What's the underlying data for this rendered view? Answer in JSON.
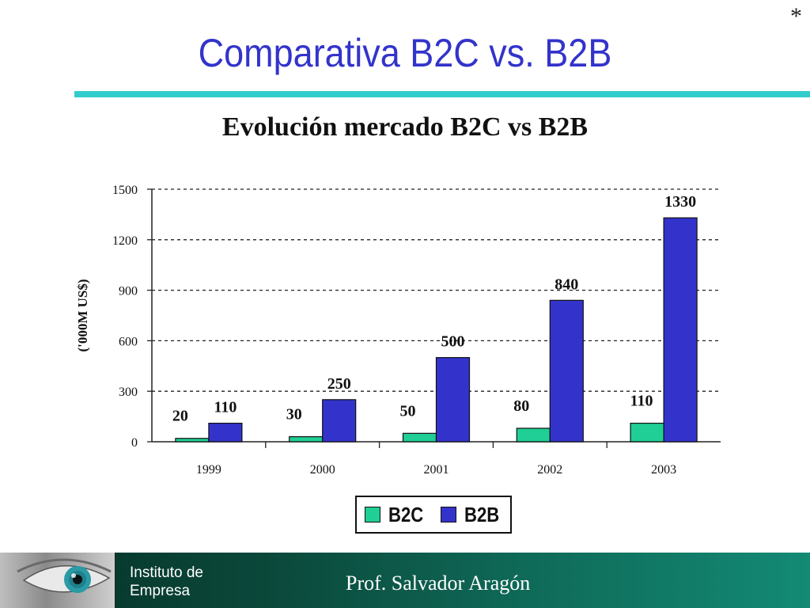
{
  "slide": {
    "title": "Comparativa B2C vs. B2B",
    "corner_mark": "*"
  },
  "chart_data": {
    "type": "bar",
    "title": "Evolución mercado B2C vs B2B",
    "xlabel": "",
    "ylabel": "('000M US$)",
    "categories": [
      "1999",
      "2000",
      "2001",
      "2002",
      "2003"
    ],
    "series": [
      {
        "name": "B2C",
        "color": "#1fcf95",
        "values": [
          20,
          30,
          50,
          80,
          110
        ]
      },
      {
        "name": "B2B",
        "color": "#3333cc",
        "values": [
          110,
          250,
          500,
          840,
          1330
        ]
      }
    ],
    "ylim": [
      0,
      1500
    ],
    "yticks": [
      "0",
      "300",
      "600",
      "900",
      "1200",
      "1500"
    ],
    "grid": true,
    "legend_position": "bottom-center"
  },
  "footer": {
    "org_line1": "Instituto de",
    "org_line2": "Empresa",
    "author": "Prof.  Salvador Aragón",
    "colors": {
      "footer_dark": "#063027",
      "footer_light": "#138a75"
    }
  }
}
